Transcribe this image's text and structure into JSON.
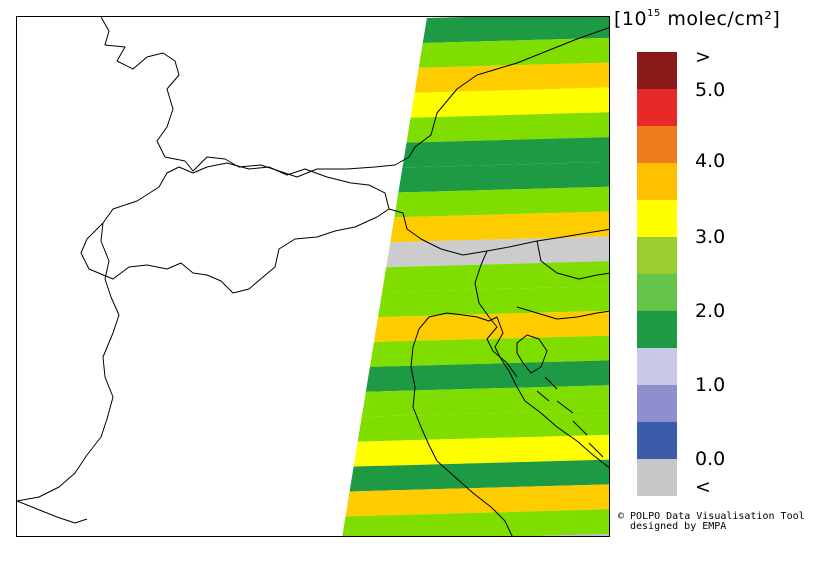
{
  "legend": {
    "unit_text": "[10",
    "unit_exp": "15",
    "unit_rest": " molec/cm²]",
    "labels": [
      ">",
      "5.0",
      "4.0",
      "3.0",
      "2.0",
      "1.0",
      "0.0",
      "<"
    ],
    "colors": [
      "#8b1a1a",
      "#e8292a",
      "#f07d1d",
      "#ffc000",
      "#ffff00",
      "#9acd32",
      "#66c34a",
      "#1e9a45",
      "#c8c8e8",
      "#8f8fd0",
      "#3b5bab",
      "#c8c8c8"
    ]
  },
  "map_data": {
    "band_colors": [
      "#1e9a45",
      "#7fdd00",
      "#ffcc00",
      "#ffff00",
      "#7fdd00",
      "#1e9a45",
      "#1e9a45",
      "#7fdd00",
      "#ffcc00",
      "#cccccc",
      "#7fdd00",
      "#7fdd00",
      "#ffcc00",
      "#7fdd00",
      "#1e9a45",
      "#7fdd00",
      "#7fdd00",
      "#ffff00",
      "#1e9a45",
      "#ffcc00",
      "#7fdd00",
      "#b8b8ec"
    ]
  },
  "credit": {
    "line1": "© POLPO Data Visualisation Tool",
    "line2": "designed by EMPA"
  }
}
